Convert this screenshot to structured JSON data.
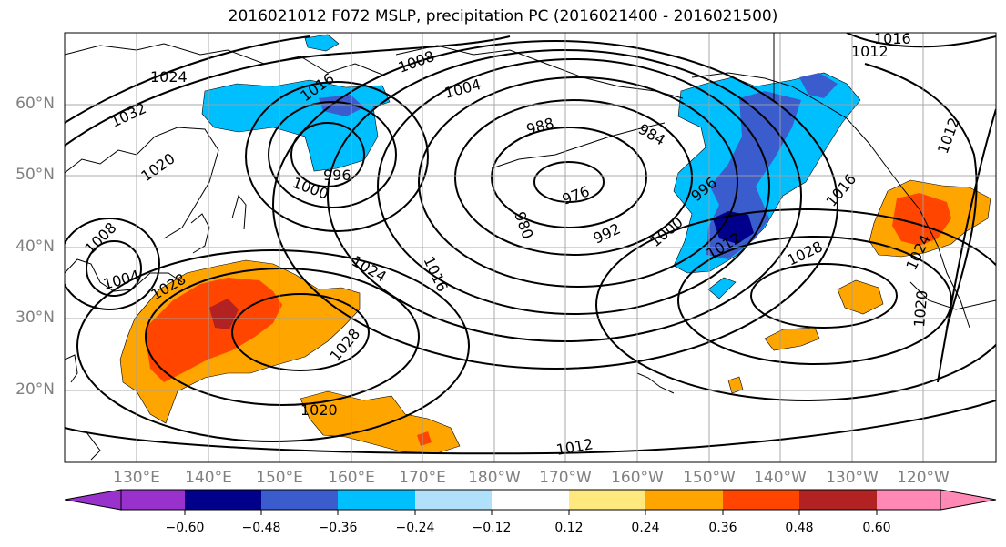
{
  "title": "2016021012 F072 MSLP, precipitation PC (2016021400 - 2016021500)",
  "lat_labels": [
    "60°N",
    "50°N",
    "40°N",
    "30°N",
    "20°N"
  ],
  "lon_labels": [
    "130°E",
    "140°E",
    "150°E",
    "160°E",
    "170°E",
    "180°W",
    "170°W",
    "160°W",
    "150°W",
    "140°W",
    "130°W",
    "120°W"
  ],
  "colorbar": {
    "levels": [
      "−0.60",
      "−0.48",
      "−0.36",
      "−0.24",
      "−0.12",
      "0.12",
      "0.24",
      "0.36",
      "0.48",
      "0.60"
    ],
    "colors": [
      "#9932cc",
      "#00008b",
      "#3a5ccc",
      "#00bfff",
      "#b0e0fa",
      "#ffffff",
      "#ffe97f",
      "#ffa500",
      "#ff4500",
      "#b22222",
      "#ff88b4"
    ]
  },
  "isobar_labels": [
    "1024",
    "1032",
    "1020",
    "1016",
    "1008",
    "1004",
    "996",
    "1000",
    "988",
    "984",
    "976",
    "980",
    "992",
    "996",
    "1000",
    "1016",
    "1012",
    "1016",
    "1012",
    "1012",
    "1024",
    "1028",
    "1016",
    "1028",
    "1020",
    "1024",
    "1012",
    "1028",
    "1020",
    "1004",
    "1008"
  ]
}
